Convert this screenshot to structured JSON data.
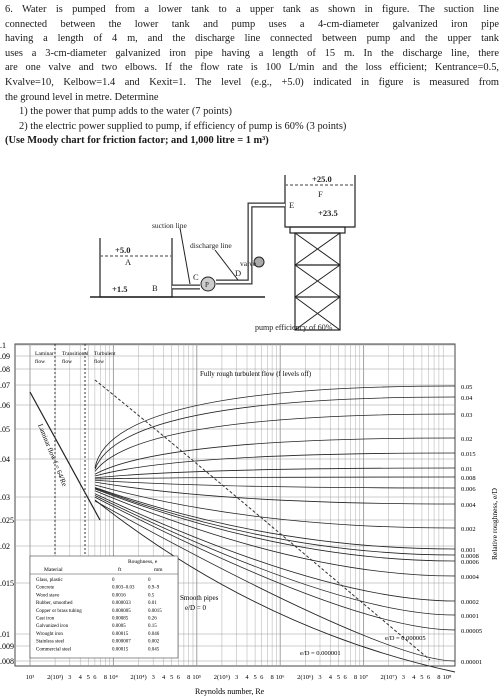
{
  "problem": {
    "lines": [
      "6. Water is pumped from a lower tank to a upper tank as shown in figure. The suction line",
      "connected between the lower tank and pump uses a 4-cm-diameter galvanized iron pipe",
      "having a length of 4 m, and the discharge line connected between pump and the upper tank",
      "uses a 3-cm-diameter galvanized iron pipe having a length of 15 m. In the discharge line, there",
      "are one valve and two elbows. If the flow rate is 100 L/min and the loss efficient; Kentrance=0.5,",
      "Kvalve=10, Kelbow=1.4 and Kexit=1. The level (e.g., +5.0) indicated in figure is measured from",
      "the ground level in metre. Determine"
    ],
    "questions": [
      "1) the power that pump adds to the water (7 points)",
      "2) the electric power supplied to pump, if efficiency of pump is 60% (3 points)"
    ],
    "note": "(Use Moody chart for friction factor; and 1,000 litre = 1 m³)"
  },
  "diagram": {
    "upper_level": "+25.0",
    "point_f": "F",
    "point_e": "E",
    "discharge_level": "+23.5",
    "suction_line": "suction line",
    "discharge_line": "discharge line",
    "valve": "valve",
    "lower_level": "+5.0",
    "point_a": "A",
    "suction_level": "+1.5",
    "point_b": "B",
    "point_c": "C",
    "pump": "P",
    "point_d": "D",
    "pump_efficiency": "pump efficiency of 60%"
  },
  "moody": {
    "friction_ticks": [
      "0.1",
      "0.09",
      "0.08",
      "0.07",
      "0.06",
      "0.05",
      "0.04",
      "0.03",
      "0.025",
      "0.02",
      "0.015",
      "0.01",
      "0.009",
      "0.008"
    ],
    "roughness_ticks": [
      "0.05",
      "0.04",
      "0.03",
      "0.02",
      "0.015",
      "0.01",
      "0.008",
      "0.006",
      "0.004",
      "0.002",
      "0.001",
      "0.0008",
      "0.0006",
      "0.0004",
      "0.0002",
      "0.0001",
      "0.00005",
      "0.00001"
    ],
    "reynolds_ticks": [
      "10³",
      "2(10³)",
      "3",
      "4",
      "5",
      "6",
      "8",
      "10⁴",
      "2(10⁴)",
      "3",
      "4",
      "5",
      "6",
      "8",
      "10⁵",
      "2(10⁵)",
      "3",
      "4",
      "5",
      "6",
      "8",
      "10⁶",
      "2(10⁶)",
      "3",
      "4",
      "5",
      "6",
      "8",
      "10⁷",
      "2(10⁷)",
      "3",
      "4",
      "5",
      "6",
      "8",
      "10⁸"
    ],
    "regions": [
      "Laminar",
      "Transitional",
      "Turbulent",
      "flow",
      "flow",
      "flow"
    ],
    "laminar_label": "Laminar flow f = 64/Re",
    "fully_rough": "Fully rough turbulent flow (f levels off)",
    "smooth": [
      "Smooth pipes",
      "e/D = 0"
    ],
    "ed_small": [
      "e/D = 0.000005",
      "e/D = 0.000001"
    ],
    "y_label": "Relative roughness, e/D",
    "x_label": "Reynolds number, Re",
    "table": {
      "title": "Roughness, e",
      "header": [
        "Material",
        "ft",
        "mm"
      ],
      "rows": [
        [
          "Glass, plastic",
          "0",
          "0"
        ],
        [
          "Concrete",
          "0.003–0.03",
          "0.9–9"
        ],
        [
          "Wood stave",
          "0.0016",
          "0.5"
        ],
        [
          "Rubber, smoothed",
          "0.000033",
          "0.01"
        ],
        [
          "Copper or brass tubing",
          "0.000005",
          "0.0015"
        ],
        [
          "Cast iron",
          "0.00085",
          "0.26"
        ],
        [
          "Galvanized iron",
          "0.0005",
          "0.15"
        ],
        [
          "Wrought iron",
          "0.00015",
          "0.046"
        ],
        [
          "Stainless steel",
          "0.000007",
          "0.002"
        ],
        [
          "Commercial steel",
          "0.00015",
          "0.045"
        ]
      ]
    }
  }
}
